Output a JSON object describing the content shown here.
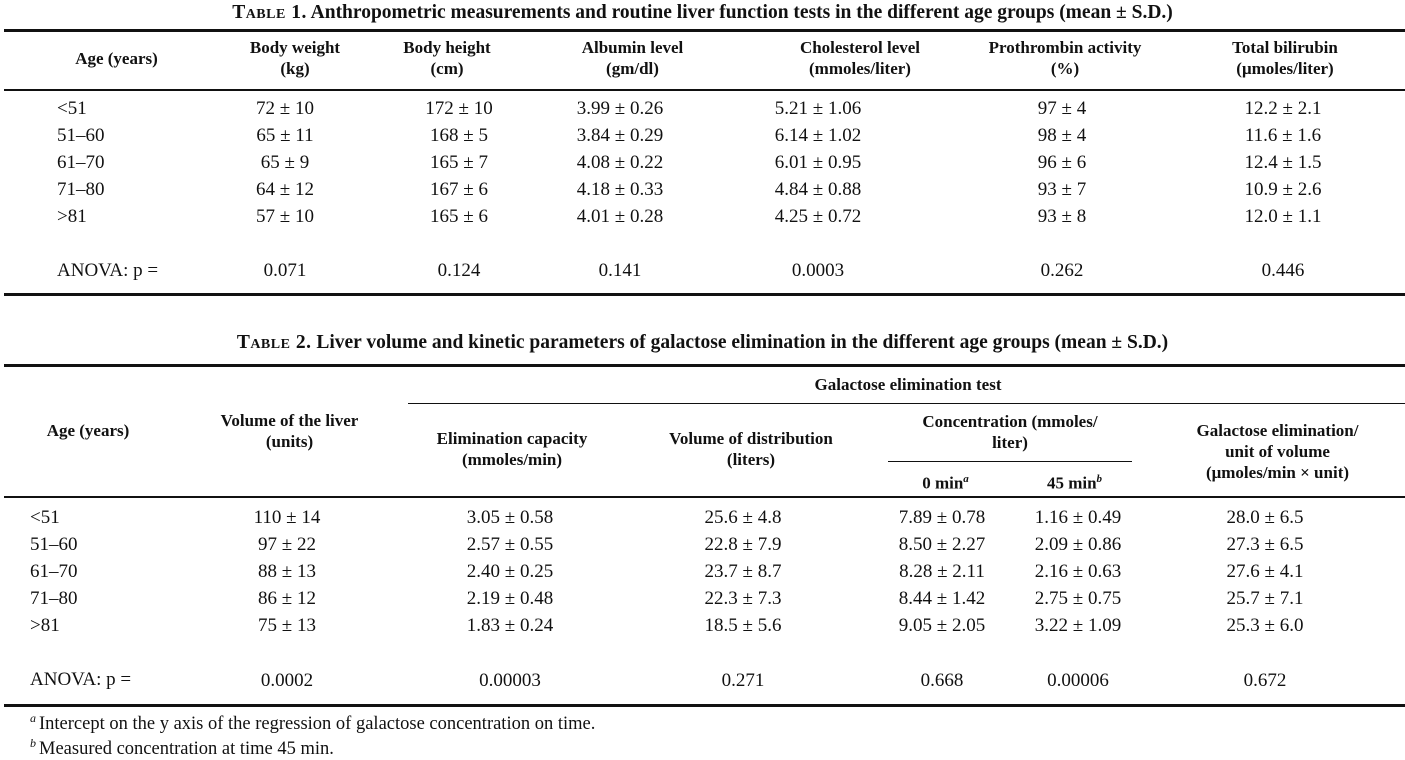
{
  "table1": {
    "caption_label": "Table 1.",
    "caption_text": "Anthropometric measurements and routine liver function tests in the different age groups (mean ± S.D.)",
    "headers": [
      [
        "Age (years)"
      ],
      [
        "Body weight",
        "(kg)"
      ],
      [
        "Body height",
        "(cm)"
      ],
      [
        "Albumin level",
        "(gm/dl)"
      ],
      [
        "Cholesterol level",
        "(mmoles/liter)"
      ],
      [
        "Prothrombin activity",
        "(%)"
      ],
      [
        "Total bilirubin",
        "(μmoles/liter)"
      ]
    ],
    "rows": [
      [
        "<51",
        "72 ± 10",
        "172 ± 10",
        "3.99 ± 0.26",
        "5.21 ± 1.06",
        "97 ± 4",
        "12.2 ± 2.1"
      ],
      [
        "51–60",
        "65 ± 11",
        "168 ± 5",
        "3.84 ± 0.29",
        "6.14 ± 1.02",
        "98 ± 4",
        "11.6 ± 1.6"
      ],
      [
        "61–70",
        "65 ± 9",
        "165 ± 7",
        "4.08 ± 0.22",
        "6.01 ± 0.95",
        "96 ± 6",
        "12.4 ± 1.5"
      ],
      [
        "71–80",
        "64 ± 12",
        "167 ± 6",
        "4.18 ± 0.33",
        "4.84 ± 0.88",
        "93 ± 7",
        "10.9 ± 2.6"
      ],
      [
        ">81",
        "57 ± 10",
        "165 ± 6",
        "4.01 ± 0.28",
        "4.25 ± 0.72",
        "93 ± 8",
        "12.0 ± 1.1"
      ]
    ],
    "anova": [
      "ANOVA: p =",
      "0.071",
      "0.124",
      "0.141",
      "0.0003",
      "0.262",
      "0.446"
    ]
  },
  "table2": {
    "caption_label": "Table 2.",
    "caption_text": "Liver volume and kinetic parameters of galactose elimination in the different age groups (mean ± S.D.)",
    "header_age": "Age (years)",
    "header_volume": [
      "Volume of the liver",
      "(units)"
    ],
    "header_group": "Galactose elimination test",
    "header_capacity": [
      "Elimination capacity",
      "(mmoles/min)"
    ],
    "header_distribution": [
      "Volume of distribution",
      "(liters)"
    ],
    "header_concentration": [
      "Concentration (mmoles/",
      "liter)"
    ],
    "header_0min": "0 min",
    "header_0min_mark": "a",
    "header_45min": "45 min",
    "header_45min_mark": "b",
    "header_per_unit": [
      "Galactose elimination/",
      "unit of volume",
      "(μmoles/min × unit)"
    ],
    "rows": [
      [
        "<51",
        "110 ± 14",
        "3.05 ± 0.58",
        "25.6 ± 4.8",
        "7.89 ± 0.78",
        "1.16 ± 0.49",
        "28.0 ± 6.5"
      ],
      [
        "51–60",
        "97 ± 22",
        "2.57 ± 0.55",
        "22.8 ± 7.9",
        "8.50 ± 2.27",
        "2.09 ± 0.86",
        "27.3 ± 6.5"
      ],
      [
        "61–70",
        "88 ± 13",
        "2.40 ± 0.25",
        "23.7 ± 8.7",
        "8.28 ± 2.11",
        "2.16 ± 0.63",
        "27.6 ± 4.1"
      ],
      [
        "71–80",
        "86 ± 12",
        "2.19 ± 0.48",
        "22.3 ± 7.3",
        "8.44 ± 1.42",
        "2.75 ± 0.75",
        "25.7 ± 7.1"
      ],
      [
        ">81",
        "75 ± 13",
        "1.83 ± 0.24",
        "18.5 ± 5.6",
        "9.05 ± 2.05",
        "3.22 ± 1.09",
        "25.3 ± 6.0"
      ]
    ],
    "anova": [
      "ANOVA: p =",
      "0.0002",
      "0.00003",
      "0.271",
      "0.668",
      "0.00006",
      "0.672"
    ]
  },
  "footnotes": [
    {
      "mark": "a",
      "text": "Intercept on the y axis of the regression of galactose concentration on time."
    },
    {
      "mark": "b",
      "text": "Measured concentration at time 45 min."
    }
  ]
}
